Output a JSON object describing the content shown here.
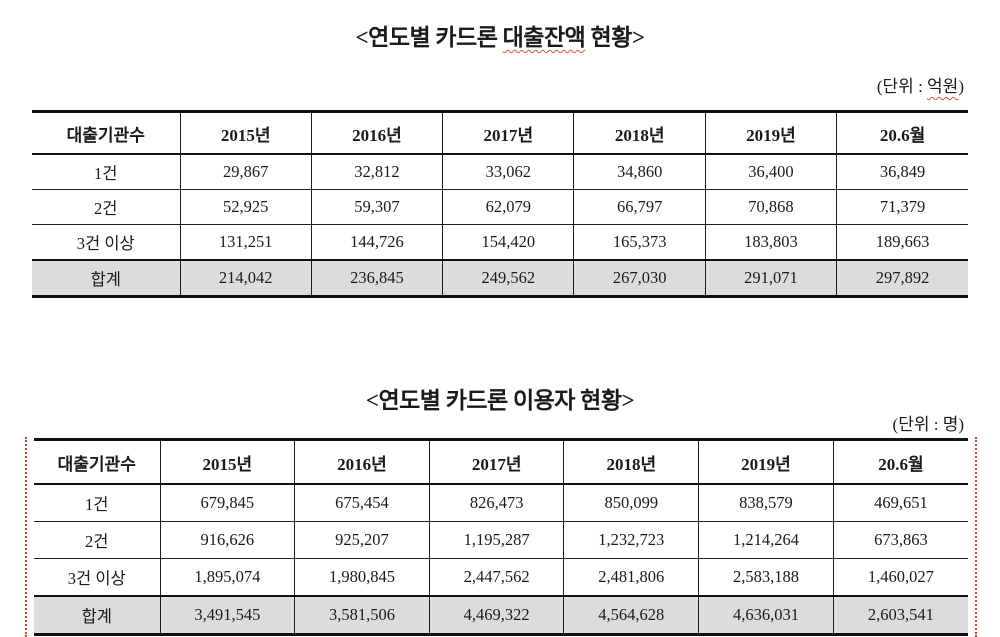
{
  "colors": {
    "border": "#111111",
    "total_row_bg": "#dcdcdc",
    "misspell_underline": "#d9572b",
    "revision_marker": "#d0452e"
  },
  "tables": [
    {
      "title_text": "<연도별 카드론 대출잔액 현황>",
      "title_segments": [
        {
          "text": "<연도별 카드론 ",
          "wavy": false
        },
        {
          "text": "대출잔액",
          "wavy": true
        },
        {
          "text": " 현황>",
          "wavy": false
        }
      ],
      "unit_text": "(단위 : 억원)",
      "unit_segments": [
        {
          "text": "(단위 : ",
          "wavy": false
        },
        {
          "text": "억원",
          "wavy": true
        },
        {
          "text": ")",
          "wavy": false
        }
      ],
      "columns": [
        "대출기관수",
        "2015년",
        "2016년",
        "2017년",
        "2018년",
        "2019년",
        "20.6월"
      ],
      "rows": [
        {
          "label": "1건",
          "values": [
            "29,867",
            "32,812",
            "33,062",
            "34,860",
            "36,400",
            "36,849"
          ],
          "total": false
        },
        {
          "label": "2건",
          "values": [
            "52,925",
            "59,307",
            "62,079",
            "66,797",
            "70,868",
            "71,379"
          ],
          "total": false
        },
        {
          "label": "3건 이상",
          "values": [
            "131,251",
            "144,726",
            "154,420",
            "165,373",
            "183,803",
            "189,663"
          ],
          "total": false
        },
        {
          "label": "합계",
          "values": [
            "214,042",
            "236,845",
            "249,562",
            "267,030",
            "291,071",
            "297,892"
          ],
          "total": true
        }
      ]
    },
    {
      "title_text": "<연도별 카드론 이용자 현황>",
      "title_segments": [
        {
          "text": "<연도별 카드론 이용자 현황>",
          "wavy": false
        }
      ],
      "unit_text": "(단위 : 명)",
      "unit_segments": [
        {
          "text": "(단위 : 명)",
          "wavy": false
        }
      ],
      "columns": [
        "대출기관수",
        "2015년",
        "2016년",
        "2017년",
        "2018년",
        "2019년",
        "20.6월"
      ],
      "rows": [
        {
          "label": "1건",
          "values": [
            "679,845",
            "675,454",
            "826,473",
            "850,099",
            "838,579",
            "469,651"
          ],
          "total": false
        },
        {
          "label": "2건",
          "values": [
            "916,626",
            "925,207",
            "1,195,287",
            "1,232,723",
            "1,214,264",
            "673,863"
          ],
          "total": false
        },
        {
          "label": "3건 이상",
          "values": [
            "1,895,074",
            "1,980,845",
            "2,447,562",
            "2,481,806",
            "2,583,188",
            "1,460,027"
          ],
          "total": false
        },
        {
          "label": "합계",
          "values": [
            "3,491,545",
            "3,581,506",
            "4,469,322",
            "4,564,628",
            "4,636,031",
            "2,603,541"
          ],
          "total": true
        }
      ]
    }
  ]
}
